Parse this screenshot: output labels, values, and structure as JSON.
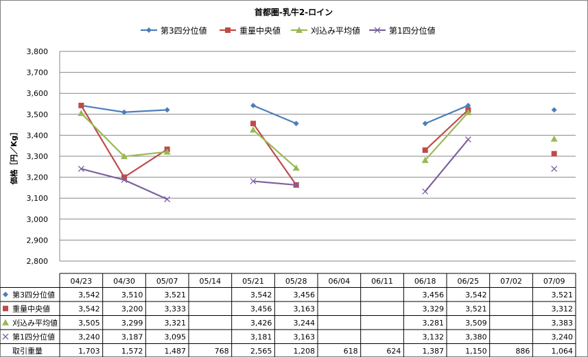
{
  "chart_data": {
    "type": "line",
    "title": "首都圏-乳牛2-ロイン",
    "ylabel": "価格［円／Kg］",
    "ylim": [
      2800,
      3800
    ],
    "ytick_step": 100,
    "grid": true,
    "legend_position": "top",
    "categories": [
      "04/23",
      "04/30",
      "05/07",
      "05/14",
      "05/21",
      "05/28",
      "06/04",
      "06/11",
      "06/18",
      "06/25",
      "07/02",
      "07/09"
    ],
    "series": [
      {
        "name": "第3四分位値",
        "color": "#4a7ebb",
        "marker": "diamond",
        "values": [
          3542,
          3510,
          3521,
          null,
          3542,
          3456,
          null,
          null,
          3456,
          3542,
          null,
          3521
        ],
        "labels": [
          "3,542",
          "3,510",
          "3,521",
          "",
          "3,542",
          "3,456",
          "",
          "",
          "3,456",
          "3,542",
          "",
          "3,521"
        ]
      },
      {
        "name": "重量中央値",
        "color": "#be4b48",
        "marker": "square",
        "values": [
          3542,
          3200,
          3333,
          null,
          3456,
          3163,
          null,
          null,
          3329,
          3521,
          null,
          3312
        ],
        "labels": [
          "3,542",
          "3,200",
          "3,333",
          "",
          "3,456",
          "3,163",
          "",
          "",
          "3,329",
          "3,521",
          "",
          "3,312"
        ]
      },
      {
        "name": "刈込み平均値",
        "color": "#98b954",
        "marker": "triangle",
        "values": [
          3505,
          3299,
          3321,
          null,
          3426,
          3244,
          null,
          null,
          3281,
          3509,
          null,
          3383
        ],
        "labels": [
          "3,505",
          "3,299",
          "3,321",
          "",
          "3,426",
          "3,244",
          "",
          "",
          "3,281",
          "3,509",
          "",
          "3,383"
        ]
      },
      {
        "name": "第1四分位値",
        "color": "#7d60a0",
        "marker": "x",
        "values": [
          3240,
          3187,
          3095,
          null,
          3181,
          3163,
          null,
          null,
          3132,
          3380,
          null,
          3240
        ],
        "labels": [
          "3,240",
          "3,187",
          "3,095",
          "",
          "3,181",
          "3,163",
          "",
          "",
          "3,132",
          "3,380",
          "",
          "3,240"
        ]
      }
    ],
    "table_extra_row": {
      "name": "取引重量",
      "labels": [
        "1,703",
        "1,572",
        "1,487",
        "768",
        "2,565",
        "1,208",
        "618",
        "624",
        "1,387",
        "1,150",
        "886",
        "1,064"
      ]
    }
  }
}
